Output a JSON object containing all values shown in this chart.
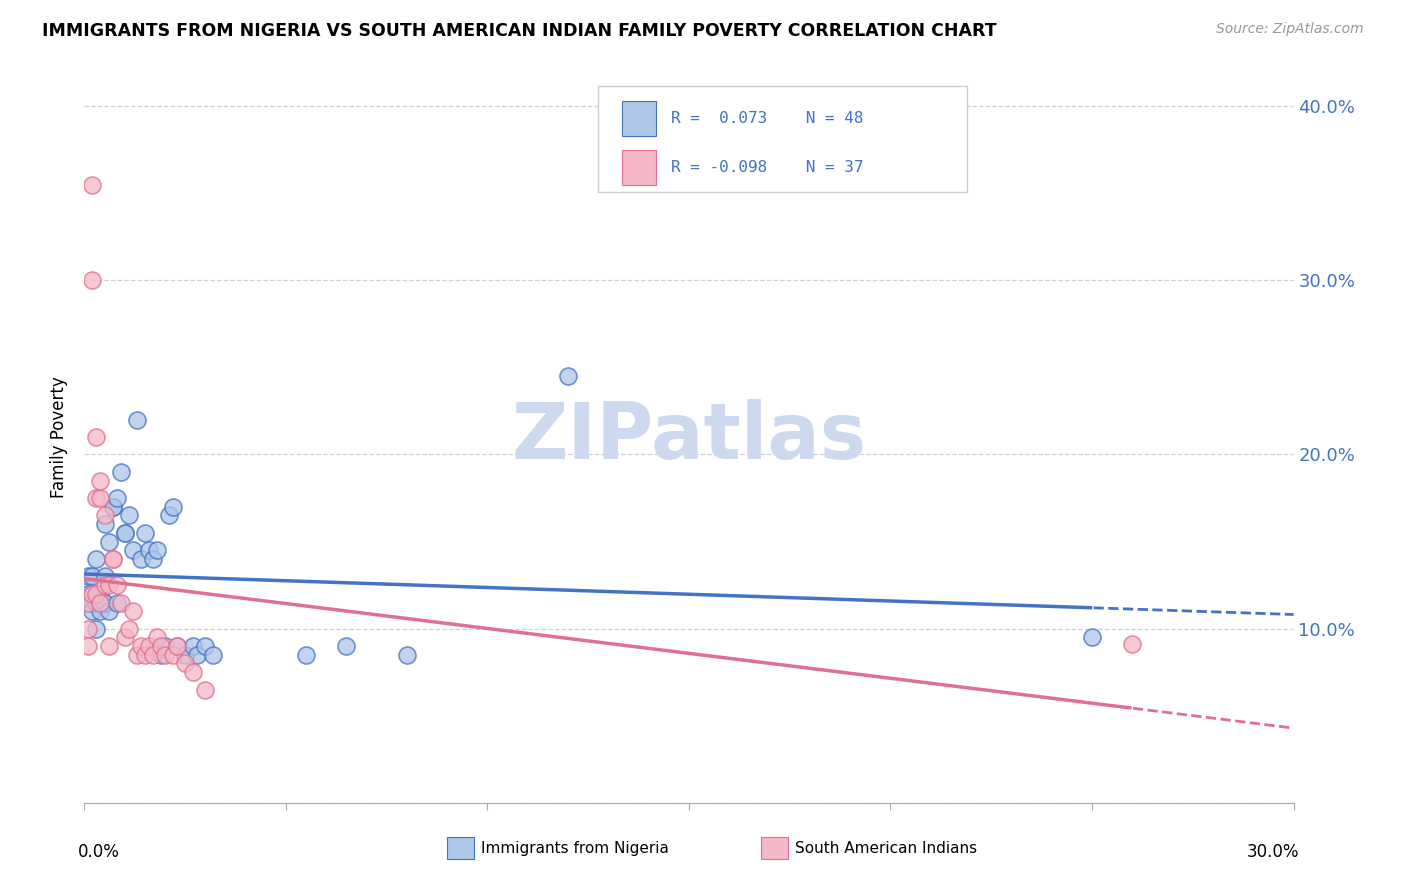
{
  "title": "IMMIGRANTS FROM NIGERIA VS SOUTH AMERICAN INDIAN FAMILY POVERTY CORRELATION CHART",
  "source": "Source: ZipAtlas.com",
  "ylabel": "Family Poverty",
  "xlim": [
    0.0,
    0.3
  ],
  "ylim": [
    0.0,
    0.42
  ],
  "yticks": [
    0.0,
    0.1,
    0.2,
    0.3,
    0.4
  ],
  "ytick_labels": [
    "",
    "10.0%",
    "20.0%",
    "30.0%",
    "40.0%"
  ],
  "blue_fill": "#aec6e8",
  "blue_edge": "#4472c4",
  "pink_fill": "#f4b8c8",
  "pink_edge": "#e07090",
  "blue_line_color": "#4472c4",
  "pink_line_color": "#e07090",
  "text_color": "#4472c4",
  "watermark_color": "#ccd9ee",
  "nigeria_x": [
    0.001,
    0.001,
    0.001,
    0.002,
    0.002,
    0.002,
    0.002,
    0.003,
    0.003,
    0.003,
    0.004,
    0.004,
    0.004,
    0.005,
    0.005,
    0.005,
    0.006,
    0.006,
    0.007,
    0.007,
    0.008,
    0.008,
    0.009,
    0.01,
    0.01,
    0.011,
    0.012,
    0.013,
    0.014,
    0.015,
    0.016,
    0.017,
    0.018,
    0.019,
    0.02,
    0.021,
    0.022,
    0.023,
    0.025,
    0.027,
    0.028,
    0.03,
    0.032,
    0.055,
    0.065,
    0.08,
    0.12,
    0.25
  ],
  "nigeria_y": [
    0.12,
    0.13,
    0.115,
    0.12,
    0.115,
    0.11,
    0.13,
    0.14,
    0.115,
    0.1,
    0.12,
    0.115,
    0.11,
    0.16,
    0.115,
    0.13,
    0.11,
    0.15,
    0.17,
    0.17,
    0.115,
    0.175,
    0.19,
    0.155,
    0.155,
    0.165,
    0.145,
    0.22,
    0.14,
    0.155,
    0.145,
    0.14,
    0.145,
    0.085,
    0.09,
    0.165,
    0.17,
    0.09,
    0.085,
    0.09,
    0.085,
    0.09,
    0.085,
    0.085,
    0.09,
    0.085,
    0.245,
    0.095
  ],
  "sa_indian_x": [
    0.001,
    0.001,
    0.001,
    0.002,
    0.002,
    0.002,
    0.003,
    0.003,
    0.003,
    0.004,
    0.004,
    0.004,
    0.005,
    0.005,
    0.006,
    0.006,
    0.007,
    0.007,
    0.008,
    0.009,
    0.01,
    0.011,
    0.012,
    0.013,
    0.014,
    0.015,
    0.016,
    0.017,
    0.018,
    0.019,
    0.02,
    0.022,
    0.023,
    0.025,
    0.027,
    0.03,
    0.26
  ],
  "sa_indian_y": [
    0.115,
    0.1,
    0.09,
    0.355,
    0.3,
    0.12,
    0.21,
    0.175,
    0.12,
    0.175,
    0.185,
    0.115,
    0.165,
    0.125,
    0.125,
    0.09,
    0.14,
    0.14,
    0.125,
    0.115,
    0.095,
    0.1,
    0.11,
    0.085,
    0.09,
    0.085,
    0.09,
    0.085,
    0.095,
    0.09,
    0.085,
    0.085,
    0.09,
    0.08,
    0.075,
    0.065,
    0.091
  ]
}
